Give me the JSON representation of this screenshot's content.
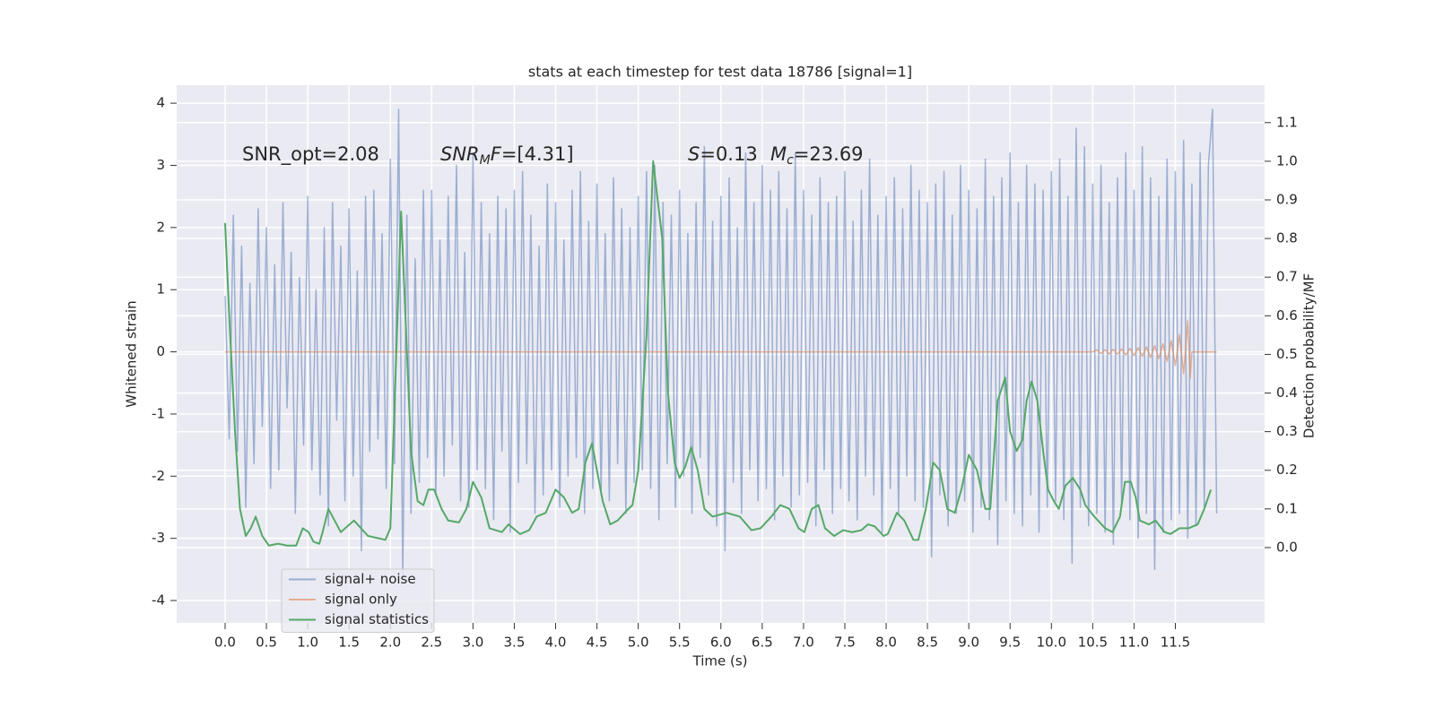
{
  "chart_data": {
    "type": "line",
    "title": "stats at each timestep for test data 18786 [signal=1]",
    "xlabel": "Time (s)",
    "ylabel": "Whitened strain",
    "y2label": "Detection probability/MF",
    "xlim": [
      -0.586,
      12.58
    ],
    "ylim": [
      -4.36,
      4.29
    ],
    "y2lim": [
      -0.195,
      1.197
    ],
    "xticks": [
      {
        "value": 0,
        "label": "0.0"
      },
      0.5,
      {
        "value": 1,
        "label": "1.0"
      },
      1.5,
      {
        "value": 2,
        "label": "2.0"
      },
      2.5,
      {
        "value": 3,
        "label": "3.0"
      },
      3.5,
      {
        "value": 4,
        "label": "4.0"
      },
      4.5,
      {
        "value": 5,
        "label": "5.0"
      },
      5.5,
      {
        "value": 6,
        "label": "6.0"
      },
      6.5,
      {
        "value": 7,
        "label": "7.0"
      },
      7.5,
      {
        "value": 8,
        "label": "8.0"
      },
      8.5,
      {
        "value": 9,
        "label": "9.0"
      },
      9.5,
      {
        "value": 10,
        "label": "10.0"
      },
      10.5,
      {
        "value": 11,
        "label": "11.0"
      },
      11.5
    ],
    "yticks": [
      -4,
      -3,
      -2,
      -1,
      0,
      1,
      2,
      3,
      4
    ],
    "y2ticks": [
      {
        "value": 0,
        "label": "0.0"
      },
      0.1,
      0.2,
      0.3,
      0.4,
      0.5,
      0.6,
      0.7,
      0.8,
      0.9,
      {
        "value": 1,
        "label": "1.0"
      },
      1.1
    ],
    "grid": true,
    "legend": "lower left",
    "annotations": [
      {
        "parts": [
          "SNR_opt=2.08"
        ]
      },
      {
        "parts": [
          "SNR",
          "M",
          "F",
          "=[4.31]"
        ]
      },
      {
        "parts": [
          "S",
          "=0.13"
        ]
      },
      {
        "parts": [
          "M",
          "c",
          "=23.69"
        ]
      }
    ],
    "series": [
      {
        "name": "signal+ noise",
        "color": "#4c72b0",
        "alpha": 0.5,
        "x": [
          0,
          0.05,
          0.1,
          0.15,
          0.2,
          0.25,
          0.3,
          0.35,
          0.4,
          0.45,
          0.5,
          0.55,
          0.6,
          0.65,
          0.7,
          0.75,
          0.8,
          0.85,
          0.9,
          0.95,
          1.0,
          1.05,
          1.1,
          1.15,
          1.2,
          1.25,
          1.3,
          1.35,
          1.4,
          1.45,
          1.5,
          1.55,
          1.6,
          1.65,
          1.7,
          1.75,
          1.8,
          1.85,
          1.9,
          1.95,
          2.0,
          2.05,
          2.1,
          2.15,
          2.2,
          2.25,
          2.3,
          2.35,
          2.4,
          2.45,
          2.5,
          2.55,
          2.6,
          2.65,
          2.7,
          2.75,
          2.8,
          2.85,
          2.9,
          2.95,
          3.0,
          3.05,
          3.1,
          3.15,
          3.2,
          3.25,
          3.3,
          3.35,
          3.4,
          3.45,
          3.5,
          3.55,
          3.6,
          3.65,
          3.7,
          3.75,
          3.8,
          3.85,
          3.9,
          3.95,
          4.0,
          4.05,
          4.1,
          4.15,
          4.2,
          4.25,
          4.3,
          4.35,
          4.4,
          4.45,
          4.5,
          4.55,
          4.6,
          4.65,
          4.7,
          4.75,
          4.8,
          4.85,
          4.9,
          4.95,
          5.0,
          5.05,
          5.1,
          5.15,
          5.2,
          5.25,
          5.3,
          5.35,
          5.4,
          5.45,
          5.5,
          5.55,
          5.6,
          5.65,
          5.7,
          5.75,
          5.8,
          5.85,
          5.9,
          5.95,
          6.0,
          6.05,
          6.1,
          6.15,
          6.2,
          6.25,
          6.3,
          6.35,
          6.4,
          6.45,
          6.5,
          6.55,
          6.6,
          6.65,
          6.7,
          6.75,
          6.8,
          6.85,
          6.9,
          6.95,
          7.0,
          7.05,
          7.1,
          7.15,
          7.2,
          7.25,
          7.3,
          7.35,
          7.4,
          7.45,
          7.5,
          7.55,
          7.6,
          7.65,
          7.7,
          7.75,
          7.8,
          7.85,
          7.9,
          7.95,
          8.0,
          8.05,
          8.1,
          8.15,
          8.2,
          8.25,
          8.3,
          8.35,
          8.4,
          8.45,
          8.5,
          8.55,
          8.6,
          8.65,
          8.7,
          8.75,
          8.8,
          8.85,
          8.9,
          8.95,
          9.0,
          9.05,
          9.1,
          9.15,
          9.2,
          9.25,
          9.3,
          9.35,
          9.4,
          9.45,
          9.5,
          9.55,
          9.6,
          9.65,
          9.7,
          9.75,
          9.8,
          9.85,
          9.9,
          9.95,
          10.0,
          10.05,
          10.1,
          10.15,
          10.2,
          10.25,
          10.3,
          10.35,
          10.4,
          10.45,
          10.5,
          10.55,
          10.6,
          10.65,
          10.7,
          10.75,
          10.8,
          10.85,
          10.9,
          10.95,
          11.0,
          11.05,
          11.1,
          11.15,
          11.2,
          11.25,
          11.3,
          11.35,
          11.4,
          11.45,
          11.5,
          11.55,
          11.6,
          11.65,
          11.7,
          11.75,
          11.8,
          11.85,
          11.9,
          11.95,
          12.0
        ],
        "values": [
          0.9,
          -1.4,
          2.2,
          -1.6,
          1.7,
          -2.5,
          1.1,
          -1.8,
          2.3,
          -1.2,
          2.0,
          -2.2,
          1.4,
          -1.9,
          2.4,
          -0.9,
          1.6,
          -2.6,
          1.2,
          -1.5,
          2.5,
          -1.9,
          1.0,
          -2.3,
          2.0,
          -2.8,
          2.4,
          -1.1,
          1.7,
          -2.4,
          2.3,
          -2.0,
          1.3,
          -3.2,
          2.5,
          -1.6,
          2.6,
          -1.4,
          1.9,
          -2.2,
          3.1,
          -1.8,
          3.9,
          -3.6,
          2.2,
          -2.6,
          1.5,
          -2.1,
          2.6,
          -1.7,
          2.6,
          -2.3,
          1.8,
          -2.0,
          2.5,
          -1.5,
          3.0,
          -2.4,
          1.6,
          -2.5,
          3.2,
          -1.9,
          2.4,
          -2.2,
          1.9,
          -2.7,
          2.5,
          -1.6,
          2.3,
          -2.9,
          2.6,
          -2.1,
          2.9,
          -1.8,
          2.2,
          -2.6,
          1.7,
          -2.3,
          2.7,
          -1.9,
          2.4,
          -2.5,
          1.8,
          -2.0,
          2.6,
          -1.7,
          2.9,
          -2.6,
          2.1,
          -2.2,
          2.7,
          -2.3,
          1.9,
          -2.4,
          2.8,
          -1.8,
          2.3,
          -2.6,
          2.0,
          -2.1,
          2.5,
          -1.9,
          2.9,
          -2.2,
          3.0,
          -2.7,
          2.4,
          -1.8,
          2.2,
          -2.5,
          2.6,
          -2.0,
          1.9,
          -2.6,
          2.4,
          -1.7,
          3.3,
          -2.3,
          2.1,
          -2.8,
          2.5,
          -3.2,
          2.8,
          -2.1,
          2.0,
          -2.6,
          3.2,
          -1.9,
          2.4,
          -2.4,
          3.0,
          -2.2,
          2.6,
          -2.7,
          2.9,
          -2.0,
          2.3,
          -2.5,
          3.2,
          -2.3,
          2.6,
          -2.1,
          2.2,
          -2.8,
          2.8,
          -1.9,
          2.4,
          -2.6,
          2.5,
          -2.2,
          2.9,
          -2.4,
          2.1,
          -2.7,
          2.6,
          -2.0,
          3.1,
          -2.3,
          2.2,
          -2.9,
          2.5,
          -2.2,
          2.8,
          -2.6,
          2.3,
          -2.0,
          3.0,
          -2.4,
          2.6,
          -2.5,
          2.4,
          -3.3,
          2.7,
          -2.3,
          2.9,
          -2.8,
          2.2,
          -2.6,
          3.0,
          -2.4,
          2.6,
          -2.9,
          2.3,
          -2.5,
          3.1,
          -2.7,
          2.5,
          -3.1,
          2.8,
          -2.4,
          3.2,
          -2.6,
          2.4,
          -2.8,
          3.0,
          -2.3,
          2.7,
          -2.9,
          2.6,
          -2.5,
          2.9,
          -2.4,
          3.1,
          -2.7,
          2.5,
          -3.4,
          3.6,
          -2.5,
          3.3,
          -2.8,
          2.7,
          -2.6,
          3.0,
          -2.9,
          2.4,
          -3.1,
          2.8,
          -2.5,
          3.2,
          -2.7,
          2.6,
          -3.0,
          3.3,
          -2.6,
          2.8,
          -3.5,
          2.5,
          -2.9,
          3.1,
          -2.7,
          2.9,
          -2.6,
          3.4,
          -3.0,
          2.7,
          -2.8,
          3.2,
          -2.5,
          3.0,
          3.9,
          -2.6
        ]
      },
      {
        "name": "signal only",
        "color": "#dd8452",
        "alpha": 0.6,
        "x": [
          0,
          10.5,
          10.55,
          10.6,
          10.65,
          10.7,
          10.75,
          10.8,
          10.85,
          10.9,
          10.95,
          11.0,
          11.05,
          11.1,
          11.15,
          11.2,
          11.25,
          11.3,
          11.35,
          11.4,
          11.45,
          11.5,
          11.55,
          11.6,
          11.65,
          11.68,
          11.7,
          12.0
        ],
        "values": [
          0,
          0,
          0.03,
          -0.03,
          0.035,
          -0.035,
          0.04,
          -0.04,
          0.045,
          -0.05,
          0.055,
          -0.06,
          0.065,
          -0.07,
          0.08,
          -0.09,
          0.1,
          -0.11,
          0.13,
          -0.15,
          0.18,
          -0.22,
          0.28,
          -0.35,
          0.5,
          -0.42,
          0,
          0
        ]
      },
      {
        "name": "signal statistics",
        "color": "#55a868",
        "alpha": 1,
        "axis": "y2",
        "x": [
          0,
          0.05,
          0.12,
          0.18,
          0.25,
          0.31,
          0.37,
          0.45,
          0.53,
          0.64,
          0.75,
          0.86,
          0.94,
          1.01,
          1.07,
          1.14,
          1.18,
          1.25,
          1.4,
          1.56,
          1.73,
          1.94,
          2.0,
          2.13,
          2.25,
          2.33,
          2.4,
          2.46,
          2.53,
          2.62,
          2.7,
          2.83,
          2.92,
          3.0,
          3.1,
          3.2,
          3.35,
          3.43,
          3.57,
          3.68,
          3.77,
          3.88,
          4.0,
          4.1,
          4.2,
          4.28,
          4.36,
          4.44,
          4.5,
          4.57,
          4.66,
          4.75,
          4.88,
          4.93,
          5.0,
          5.1,
          5.18,
          5.29,
          5.36,
          5.44,
          5.5,
          5.57,
          5.64,
          5.72,
          5.8,
          5.9,
          6.07,
          6.23,
          6.37,
          6.48,
          6.61,
          6.72,
          6.83,
          6.94,
          7.01,
          7.1,
          7.18,
          7.26,
          7.37,
          7.48,
          7.59,
          7.7,
          7.78,
          7.86,
          7.97,
          8.02,
          8.13,
          8.22,
          8.33,
          8.39,
          8.48,
          8.57,
          8.65,
          8.74,
          8.83,
          8.91,
          9.0,
          9.1,
          9.2,
          9.26,
          9.35,
          9.44,
          9.5,
          9.58,
          9.65,
          9.7,
          9.76,
          9.83,
          9.9,
          9.96,
          10.03,
          10.09,
          10.17,
          10.26,
          10.35,
          10.41,
          10.52,
          10.65,
          10.74,
          10.83,
          10.89,
          10.96,
          11.02,
          11.07,
          11.18,
          11.26,
          11.37,
          11.44,
          11.55,
          11.66,
          11.77,
          11.85,
          11.93
        ],
        "values": [
          0.84,
          0.6,
          0.3,
          0.1,
          0.03,
          0.05,
          0.08,
          0.03,
          0.005,
          0.01,
          0.005,
          0.005,
          0.05,
          0.04,
          0.015,
          0.01,
          0.04,
          0.1,
          0.04,
          0.07,
          0.03,
          0.02,
          0.05,
          0.87,
          0.25,
          0.12,
          0.11,
          0.15,
          0.15,
          0.1,
          0.07,
          0.065,
          0.1,
          0.17,
          0.13,
          0.05,
          0.04,
          0.06,
          0.035,
          0.045,
          0.08,
          0.09,
          0.15,
          0.13,
          0.09,
          0.1,
          0.22,
          0.27,
          0.2,
          0.12,
          0.06,
          0.07,
          0.1,
          0.11,
          0.2,
          0.55,
          1.0,
          0.8,
          0.4,
          0.22,
          0.18,
          0.21,
          0.26,
          0.2,
          0.1,
          0.08,
          0.09,
          0.08,
          0.045,
          0.05,
          0.08,
          0.11,
          0.1,
          0.05,
          0.04,
          0.1,
          0.11,
          0.05,
          0.03,
          0.045,
          0.04,
          0.045,
          0.06,
          0.055,
          0.03,
          0.035,
          0.09,
          0.07,
          0.02,
          0.02,
          0.1,
          0.22,
          0.2,
          0.1,
          0.09,
          0.15,
          0.24,
          0.2,
          0.1,
          0.1,
          0.38,
          0.44,
          0.3,
          0.25,
          0.28,
          0.38,
          0.43,
          0.38,
          0.25,
          0.15,
          0.12,
          0.1,
          0.16,
          0.18,
          0.15,
          0.11,
          0.08,
          0.05,
          0.04,
          0.08,
          0.17,
          0.17,
          0.13,
          0.07,
          0.06,
          0.07,
          0.04,
          0.035,
          0.05,
          0.05,
          0.06,
          0.1,
          0.15
        ]
      }
    ]
  }
}
